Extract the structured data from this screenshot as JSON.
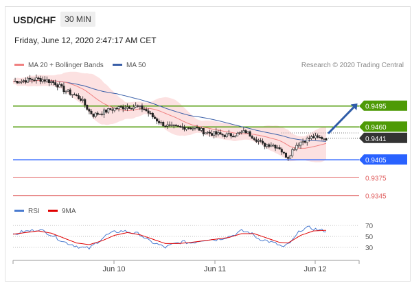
{
  "header": {
    "pair": "USD/CHF",
    "timeframe": "30 MIN",
    "datetime": "Friday, June 12, 2020 2:47:17 AM CET"
  },
  "legend": {
    "ma20": "MA 20 + Bollinger Bands",
    "ma50": "MA 50",
    "credit": "Research © 2020 Trading Central",
    "rsi": "RSI",
    "rsi_ma": "9MA"
  },
  "colors": {
    "ma20": "#f08080",
    "bollinger_fill": "#fbd7d7",
    "ma50": "#3a5fa8",
    "green_level": "#4e9a06",
    "current": "#333333",
    "blue_level": "#2962ff",
    "red_level": "#e06060",
    "arrow": "#2f5ca8",
    "rsi": "#4a7bd0",
    "rsi_ma": "#e00000"
  },
  "chart_data": [
    {
      "type": "candlestick",
      "title": "USD/CHF 30 MIN",
      "x_tick_labels": [
        "Jun 10",
        "Jun 11",
        "Jun 12"
      ],
      "ylim": [
        0.9325,
        0.956
      ],
      "close_path": [
        [
          0,
          0.9536
        ],
        [
          4,
          0.9537
        ],
        [
          8,
          0.9539
        ],
        [
          12,
          0.954
        ],
        [
          16,
          0.9538
        ],
        [
          20,
          0.9533
        ],
        [
          24,
          0.9522
        ],
        [
          28,
          0.9515
        ],
        [
          32,
          0.9507
        ],
        [
          34,
          0.9497
        ],
        [
          36,
          0.9486
        ],
        [
          38,
          0.948
        ],
        [
          42,
          0.9484
        ],
        [
          46,
          0.9489
        ],
        [
          50,
          0.9492
        ],
        [
          54,
          0.9494
        ],
        [
          58,
          0.9494
        ],
        [
          62,
          0.949
        ],
        [
          66,
          0.9477
        ],
        [
          70,
          0.9466
        ],
        [
          74,
          0.946
        ],
        [
          78,
          0.9459
        ],
        [
          82,
          0.946
        ],
        [
          86,
          0.9458
        ],
        [
          88,
          0.9456
        ],
        [
          90,
          0.9452
        ],
        [
          94,
          0.9449
        ],
        [
          98,
          0.9447
        ],
        [
          102,
          0.9446
        ],
        [
          106,
          0.9448
        ],
        [
          110,
          0.9452
        ],
        [
          112,
          0.9447
        ],
        [
          116,
          0.9437
        ],
        [
          118,
          0.943
        ],
        [
          122,
          0.9431
        ],
        [
          126,
          0.9425
        ],
        [
          128,
          0.9414
        ],
        [
          130,
          0.941
        ],
        [
          132,
          0.9421
        ],
        [
          134,
          0.943
        ],
        [
          136,
          0.9435
        ],
        [
          138,
          0.9438
        ],
        [
          140,
          0.9441
        ],
        [
          142,
          0.9443
        ],
        [
          144,
          0.9441
        ],
        [
          146,
          0.9442
        ],
        [
          148,
          0.9441
        ]
      ],
      "levels": [
        {
          "value": 0.9495,
          "label": "0.9495",
          "kind": "resistance"
        },
        {
          "value": 0.946,
          "label": "0.9460",
          "kind": "pivot"
        },
        {
          "value": 0.9441,
          "label": "0.9441",
          "kind": "last"
        },
        {
          "value": 0.9405,
          "label": "0.9405",
          "kind": "support"
        },
        {
          "value": 0.9375,
          "label": "0.9375",
          "kind": "support2"
        },
        {
          "value": 0.9345,
          "label": "0.9345",
          "kind": "support3"
        }
      ],
      "forecast_target": 0.9495,
      "series": [
        {
          "name": "MA 20 + Bollinger Bands"
        },
        {
          "name": "MA 50"
        }
      ]
    },
    {
      "type": "line",
      "title": "RSI",
      "ylim": [
        0,
        100
      ],
      "y_ticks": [
        70,
        50,
        30
      ],
      "rsi": [
        [
          0,
          52
        ],
        [
          4,
          58
        ],
        [
          8,
          60
        ],
        [
          12,
          63
        ],
        [
          16,
          57
        ],
        [
          20,
          49
        ],
        [
          24,
          40
        ],
        [
          28,
          35
        ],
        [
          32,
          30
        ],
        [
          36,
          28
        ],
        [
          40,
          40
        ],
        [
          44,
          52
        ],
        [
          48,
          58
        ],
        [
          52,
          60
        ],
        [
          56,
          57
        ],
        [
          60,
          54
        ],
        [
          64,
          42
        ],
        [
          68,
          36
        ],
        [
          72,
          30
        ],
        [
          76,
          36
        ],
        [
          80,
          40
        ],
        [
          84,
          38
        ],
        [
          88,
          42
        ],
        [
          92,
          45
        ],
        [
          96,
          44
        ],
        [
          100,
          48
        ],
        [
          104,
          52
        ],
        [
          108,
          60
        ],
        [
          112,
          57
        ],
        [
          116,
          46
        ],
        [
          120,
          42
        ],
        [
          124,
          37
        ],
        [
          128,
          30
        ],
        [
          132,
          42
        ],
        [
          136,
          62
        ],
        [
          140,
          66
        ],
        [
          144,
          62
        ],
        [
          148,
          60
        ]
      ],
      "ma": [
        [
          0,
          54
        ],
        [
          6,
          57
        ],
        [
          12,
          60
        ],
        [
          18,
          56
        ],
        [
          24,
          47
        ],
        [
          30,
          38
        ],
        [
          36,
          35
        ],
        [
          42,
          42
        ],
        [
          48,
          52
        ],
        [
          54,
          57
        ],
        [
          60,
          53
        ],
        [
          66,
          45
        ],
        [
          72,
          37
        ],
        [
          78,
          37
        ],
        [
          84,
          39
        ],
        [
          90,
          42
        ],
        [
          96,
          45
        ],
        [
          102,
          48
        ],
        [
          108,
          55
        ],
        [
          114,
          55
        ],
        [
          120,
          47
        ],
        [
          126,
          39
        ],
        [
          130,
          38
        ],
        [
          136,
          52
        ],
        [
          142,
          60
        ],
        [
          148,
          61
        ]
      ]
    }
  ]
}
